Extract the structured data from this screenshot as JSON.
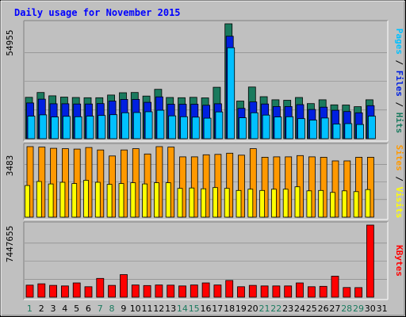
{
  "title": "Daily usage for November 2015",
  "colors": {
    "title": "#0000ff",
    "frame_bg": "#c0c0c0",
    "pages": "#00c0ff",
    "files": "#0020e0",
    "hits": "#1a7a5e",
    "visits": "#ffff00",
    "sites": "#ff9900",
    "kbytes": "#ff0000",
    "weekend_day": "#1a7a5e",
    "weekday": "#000000"
  },
  "chart_data": [
    {
      "type": "bar",
      "panel": "hits_files_pages",
      "ylabel_max": "54955",
      "ymax": 54955,
      "labels": [
        {
          "text": "Pages",
          "color": "#00c0ff"
        },
        {
          "text": " / ",
          "color": "#000000"
        },
        {
          "text": "Files",
          "color": "#0020e0"
        },
        {
          "text": " / ",
          "color": "#000000"
        },
        {
          "text": "Hits",
          "color": "#1a7a5e"
        }
      ],
      "categories": [
        "1",
        "2",
        "3",
        "4",
        "5",
        "6",
        "7",
        "8",
        "9",
        "10",
        "11",
        "12",
        "13",
        "14",
        "15",
        "16",
        "17",
        "18",
        "19",
        "20",
        "21",
        "22",
        "23",
        "24",
        "25",
        "26",
        "27",
        "28",
        "29",
        "30",
        "31"
      ],
      "series": [
        {
          "name": "Hits",
          "values": [
            19800,
            22100,
            20500,
            19900,
            19700,
            19600,
            19600,
            20900,
            22000,
            22100,
            20400,
            23600,
            19700,
            19600,
            19800,
            19500,
            24600,
            54955,
            18000,
            24700,
            20100,
            18600,
            18400,
            19700,
            16800,
            18600,
            16200,
            16100,
            15300,
            18600,
            0
          ]
        },
        {
          "name": "Files",
          "values": [
            17100,
            18900,
            16700,
            16700,
            16600,
            16600,
            16800,
            18000,
            18800,
            18800,
            17400,
            20000,
            16500,
            16500,
            16500,
            16000,
            16700,
            49000,
            14500,
            17600,
            16600,
            15400,
            15400,
            16300,
            14000,
            15100,
            13600,
            13000,
            12400,
            15800,
            0
          ]
        },
        {
          "name": "Pages",
          "values": [
            10800,
            11400,
            10400,
            10700,
            10500,
            10800,
            11100,
            11500,
            12400,
            12500,
            12900,
            13600,
            10900,
            10500,
            10300,
            9800,
            12800,
            43500,
            10000,
            12400,
            11300,
            10400,
            10500,
            9600,
            8900,
            9900,
            7000,
            7200,
            6800,
            10800,
            0
          ]
        }
      ]
    },
    {
      "type": "bar",
      "panel": "sites_visits",
      "ylabel_max": "3483",
      "ymax": 3483,
      "labels": [
        {
          "text": "Sites",
          "color": "#ff9900"
        },
        {
          "text": " / ",
          "color": "#000000"
        },
        {
          "text": "Visits",
          "color": "#ffff00"
        }
      ],
      "categories": [
        "1",
        "2",
        "3",
        "4",
        "5",
        "6",
        "7",
        "8",
        "9",
        "10",
        "11",
        "12",
        "13",
        "14",
        "15",
        "16",
        "17",
        "18",
        "19",
        "20",
        "21",
        "22",
        "23",
        "24",
        "25",
        "26",
        "27",
        "28",
        "29",
        "30",
        "31"
      ],
      "series": [
        {
          "name": "Sites",
          "values": [
            3483,
            3460,
            3400,
            3380,
            3360,
            3440,
            3320,
            3020,
            3320,
            3380,
            3120,
            3483,
            3460,
            2980,
            2980,
            3080,
            3100,
            3160,
            3060,
            3380,
            2960,
            2980,
            2980,
            3040,
            2980,
            2960,
            2780,
            2780,
            2960,
            2960,
            0
          ]
        },
        {
          "name": "Visits",
          "values": [
            1560,
            1760,
            1640,
            1720,
            1660,
            1820,
            1720,
            1620,
            1660,
            1700,
            1640,
            1700,
            1700,
            1420,
            1440,
            1400,
            1460,
            1420,
            1320,
            1380,
            1320,
            1380,
            1380,
            1500,
            1300,
            1320,
            1220,
            1300,
            1260,
            1360,
            0
          ]
        }
      ]
    },
    {
      "type": "bar",
      "panel": "kbytes",
      "ylabel_max": "7447655",
      "ymax": 7447655,
      "labels": [
        {
          "text": "KBytes",
          "color": "#ff0000"
        }
      ],
      "categories": [
        "1",
        "2",
        "3",
        "4",
        "5",
        "6",
        "7",
        "8",
        "9",
        "10",
        "11",
        "12",
        "13",
        "14",
        "15",
        "16",
        "17",
        "18",
        "19",
        "20",
        "21",
        "22",
        "23",
        "24",
        "25",
        "26",
        "27",
        "28",
        "29",
        "30",
        "31"
      ],
      "series": [
        {
          "name": "KBytes",
          "values": [
            1240000,
            1380000,
            1220000,
            1160000,
            1470000,
            1080000,
            1940000,
            1220000,
            2330000,
            1260000,
            1200000,
            1260000,
            1240000,
            1160000,
            1260000,
            1470000,
            1260000,
            1730000,
            1080000,
            1220000,
            1160000,
            1160000,
            1160000,
            1470000,
            1080000,
            1120000,
            2170000,
            1000000,
            990000,
            7447655,
            0
          ]
        }
      ]
    }
  ],
  "day_labels": [
    {
      "text": "1",
      "weekend": true
    },
    {
      "text": "2",
      "weekend": false
    },
    {
      "text": "3",
      "weekend": false
    },
    {
      "text": "4",
      "weekend": false
    },
    {
      "text": "5",
      "weekend": false
    },
    {
      "text": "6",
      "weekend": false
    },
    {
      "text": "7",
      "weekend": true
    },
    {
      "text": "8",
      "weekend": true
    },
    {
      "text": "9",
      "weekend": false
    },
    {
      "text": "10",
      "weekend": false
    },
    {
      "text": "11",
      "weekend": false
    },
    {
      "text": "12",
      "weekend": false
    },
    {
      "text": "13",
      "weekend": false
    },
    {
      "text": "14",
      "weekend": true
    },
    {
      "text": "15",
      "weekend": true
    },
    {
      "text": "16",
      "weekend": false
    },
    {
      "text": "17",
      "weekend": false
    },
    {
      "text": "18",
      "weekend": false
    },
    {
      "text": "19",
      "weekend": false
    },
    {
      "text": "20",
      "weekend": false
    },
    {
      "text": "21",
      "weekend": true
    },
    {
      "text": "22",
      "weekend": true
    },
    {
      "text": "23",
      "weekend": false
    },
    {
      "text": "24",
      "weekend": false
    },
    {
      "text": "25",
      "weekend": false
    },
    {
      "text": "26",
      "weekend": false
    },
    {
      "text": "27",
      "weekend": false
    },
    {
      "text": "28",
      "weekend": true
    },
    {
      "text": "29",
      "weekend": true
    },
    {
      "text": "30",
      "weekend": false
    },
    {
      "text": "31",
      "weekend": false
    }
  ]
}
